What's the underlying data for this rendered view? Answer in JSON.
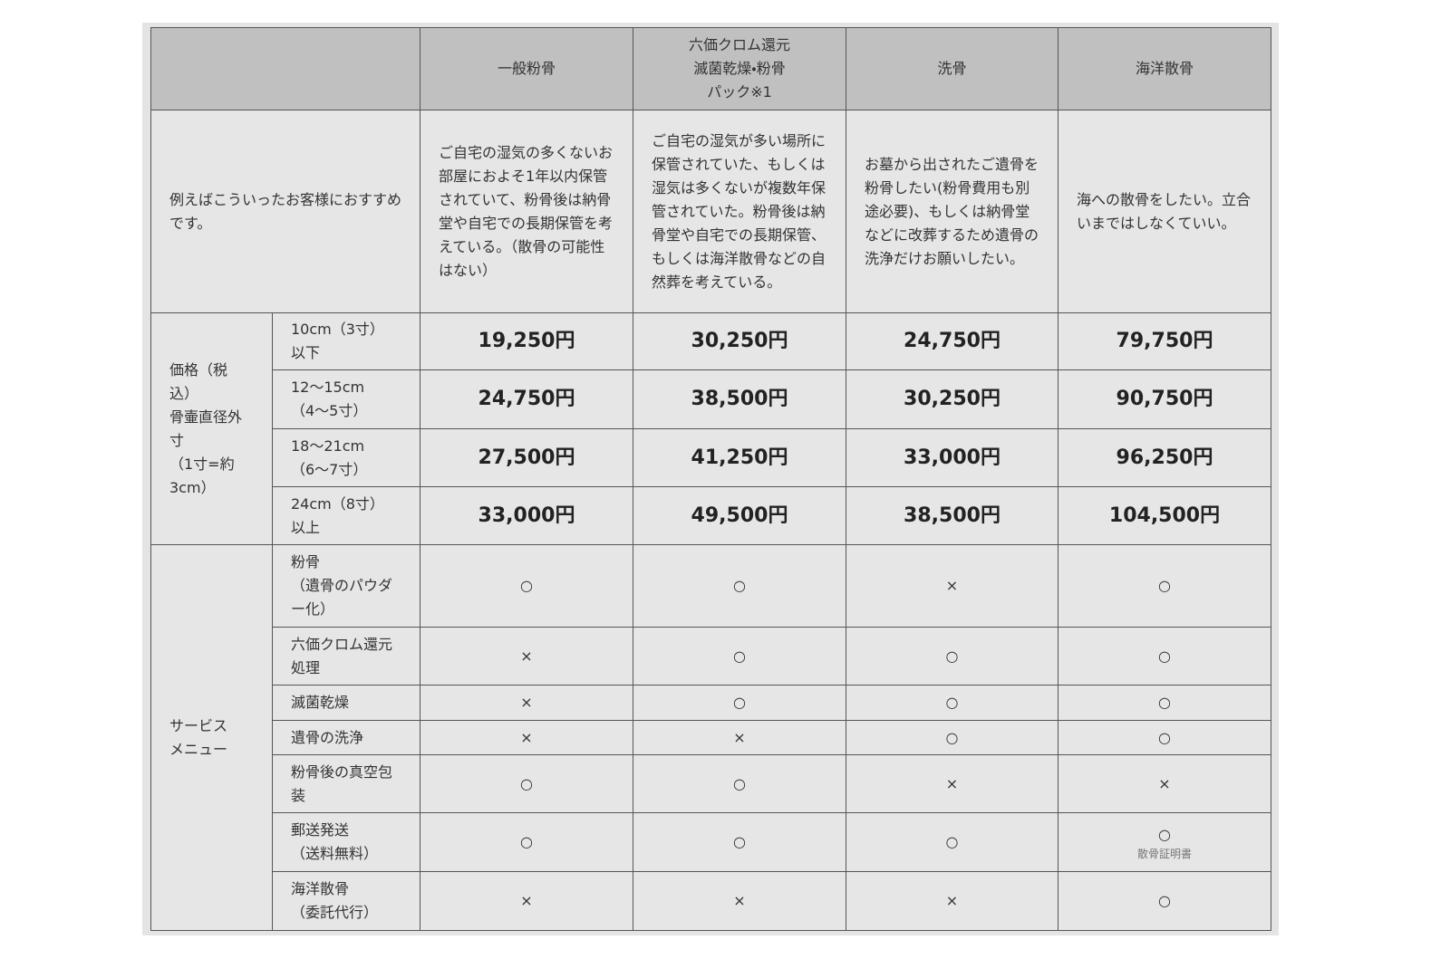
{
  "table": {
    "header": [
      "一般粉骨",
      "六価クロム還元\n滅菌乾燥・粉骨\nパック※1",
      "洗骨",
      "海洋散骨"
    ],
    "recommend": {
      "label": "例えばこういったお客様におすすめです。",
      "cells": [
        "ご自宅の湿気の多くないお部屋におよそ1年以内保管されていて、粉骨後は納骨堂や自宅での長期保管を考えている。（散骨の可能性はない）",
        "ご自宅の湿気が多い場所に保管されていた、もしくは湿気は多くないが複数年保管されていた。粉骨後は納骨堂や自宅での長期保管、もしくは海洋散骨などの自然葬を考えている。",
        "お墓から出されたご遺骨を粉骨したい(粉骨費用も別途必要)、もしくは納骨堂などに改葬するため遺骨の洗浄だけお願いしたい。",
        "海への散骨をしたい。立合いまではしなくていい。"
      ]
    },
    "price": {
      "label": "価格（税込）\n骨壷直径外寸\n（1寸=約3cm）",
      "rows": [
        {
          "size": "10cm（3寸）\n以下",
          "cells": [
            "19,250円",
            "30,250円",
            "24,750円",
            "79,750円"
          ]
        },
        {
          "size": "12〜15cm\n（4〜5寸）",
          "cells": [
            "24,750円",
            "38,500円",
            "30,250円",
            "90,750円"
          ]
        },
        {
          "size": "18〜21cm\n（6〜7寸）",
          "cells": [
            "27,500円",
            "41,250円",
            "33,000円",
            "96,250円"
          ]
        },
        {
          "size": "24cm（8寸）\n以上",
          "cells": [
            "33,000円",
            "49,500円",
            "38,500円",
            "104,500円"
          ]
        }
      ]
    },
    "service": {
      "label": "サービス\nメニュー",
      "rows": [
        {
          "name": "粉骨\n（遺骨のパウダー化）",
          "cells": [
            "○",
            "○",
            "×",
            "○"
          ]
        },
        {
          "name": "六価クロム還元処理",
          "cells": [
            "×",
            "○",
            "○",
            "○"
          ]
        },
        {
          "name": "滅菌乾燥",
          "cells": [
            "×",
            "○",
            "○",
            "○"
          ]
        },
        {
          "name": "遺骨の洗浄",
          "cells": [
            "×",
            "×",
            "○",
            "○"
          ]
        },
        {
          "name": "粉骨後の真空包装",
          "cells": [
            "○",
            "○",
            "×",
            "×"
          ]
        },
        {
          "name": "郵送発送\n（送料無料）",
          "cells": [
            "○",
            "○",
            "○",
            "○"
          ],
          "note": "散骨証明書"
        },
        {
          "name": "海洋散骨\n（委託代行）",
          "cells": [
            "×",
            "×",
            "×",
            "○"
          ]
        }
      ]
    }
  }
}
